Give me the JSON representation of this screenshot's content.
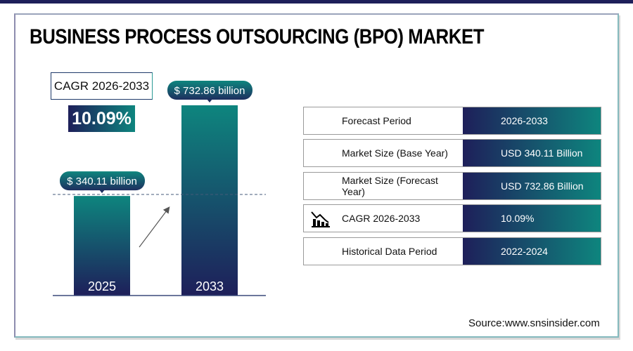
{
  "title": "BUSINESS PROCESS OUTSOURCING (BPO) MARKET",
  "cagr": {
    "label": "CAGR 2026-2033",
    "value": "10.09%"
  },
  "chart_data": {
    "type": "bar",
    "categories": [
      "2025",
      "2033"
    ],
    "values": [
      340.11,
      732.86
    ],
    "data_labels": [
      "$ 340.11 billion",
      "$ 732.86 billion"
    ],
    "unit": "USD billion"
  },
  "table": [
    {
      "label": "Forecast Period",
      "value": "2026-2033"
    },
    {
      "label": "Market Size (Base Year)",
      "value": "USD 340.11 Billion"
    },
    {
      "label": "Market Size (Forecast Year)",
      "value": "USD 732.86 Billion"
    },
    {
      "label": "CAGR 2026-2033",
      "value": "10.09%",
      "icon": "bar-chart-decline-icon"
    },
    {
      "label": "Historical Data Period",
      "value": "2022-2024"
    }
  ],
  "source": "Source:www.snsinsider.com",
  "colors": {
    "dark": "#1e1f5a",
    "teal": "#0e857e"
  }
}
